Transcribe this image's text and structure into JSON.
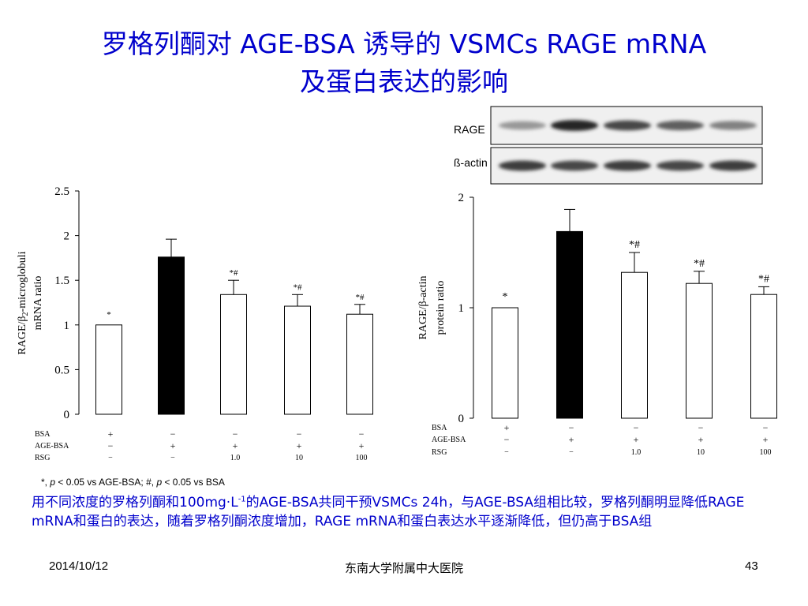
{
  "slide": {
    "title_line1": "罗格列酮对 AGE-BSA 诱导的 VSMCs RAGE mRNA",
    "title_line2": "及蛋白表达的影响",
    "footnote": {
      "part1": "*, ",
      "p1": "p",
      "part2": " < 0.05 vs AGE-BSA; #, ",
      "p2": "p",
      "part3": " < 0.05 vs BSA"
    },
    "summary": {
      "part1": "用不同浓度的罗格列酮和100mg·L",
      "sup": "-1",
      "part2": "的AGE-BSA共同干预VSMCs 24h，与AGE-BSA组相比较，罗格列酮明显降低RAGE mRNA和蛋白的表达，随着罗格列酮浓度增加，RAGE mRNA和蛋白表达水平逐渐降低，但仍高于BSA组"
    },
    "footer": {
      "date": "2014/10/12",
      "organization": "东南大学附属中大医院",
      "page_number": "43"
    }
  },
  "blot": {
    "labels": [
      "RAGE",
      "ß-actin"
    ],
    "rows": [
      {
        "name": "RAGE",
        "intensities": [
          0.45,
          0.95,
          0.8,
          0.7,
          0.55
        ]
      },
      {
        "name": "ß-actin",
        "intensities": [
          0.85,
          0.8,
          0.85,
          0.8,
          0.85
        ]
      }
    ]
  },
  "chart_data": [
    {
      "type": "bar",
      "ylabel_line1": "RAGE/β",
      "ylabel_sub": "2",
      "ylabel_line1_tail": "-microglobuli",
      "ylabel_line2": "mRNA ratio",
      "ylim": [
        0,
        2.5
      ],
      "ticks": [
        "0",
        "0.5",
        "1",
        "1.5",
        "2",
        "2.5"
      ],
      "tick_values": [
        0,
        0.5,
        1,
        1.5,
        2,
        2.5
      ],
      "values": [
        1.0,
        1.76,
        1.34,
        1.21,
        1.12
      ],
      "errors": [
        0,
        0.2,
        0.16,
        0.13,
        0.11
      ],
      "fills": [
        "#ffffff",
        "#000000",
        "#ffffff",
        "#ffffff",
        "#ffffff"
      ],
      "annotations": [
        "*",
        "",
        "*#",
        "*#",
        "*#"
      ],
      "treatments": [
        {
          "label": "BSA",
          "cells": [
            "+",
            "−",
            "−",
            "−",
            "−"
          ]
        },
        {
          "label": "AGE-BSA",
          "cells": [
            "−",
            "+",
            "+",
            "+",
            "+"
          ]
        },
        {
          "label": "RSG",
          "cells": [
            "−",
            "−",
            "1.0",
            "10",
            "100"
          ]
        }
      ]
    },
    {
      "type": "bar",
      "ylabel_line1": "RAGE/β-actin",
      "ylabel_line2": "protein ratio",
      "ylim": [
        0,
        2
      ],
      "ticks": [
        "0",
        "1",
        "2"
      ],
      "tick_values": [
        0,
        1,
        2
      ],
      "values": [
        1.0,
        1.69,
        1.32,
        1.22,
        1.12
      ],
      "errors": [
        0,
        0.2,
        0.18,
        0.11,
        0.07
      ],
      "fills": [
        "#ffffff",
        "#000000",
        "#ffffff",
        "#ffffff",
        "#ffffff"
      ],
      "annotations": [
        "*",
        "",
        "*#",
        "*#",
        "*#"
      ],
      "treatments": [
        {
          "label": "BSA",
          "cells": [
            "+",
            "−",
            "−",
            "−",
            "−"
          ]
        },
        {
          "label": "AGE-BSA",
          "cells": [
            "−",
            "+",
            "+",
            "+",
            "+"
          ]
        },
        {
          "label": "RSG",
          "cells": [
            "−",
            "−",
            "1.0",
            "10",
            "100"
          ]
        }
      ]
    }
  ]
}
